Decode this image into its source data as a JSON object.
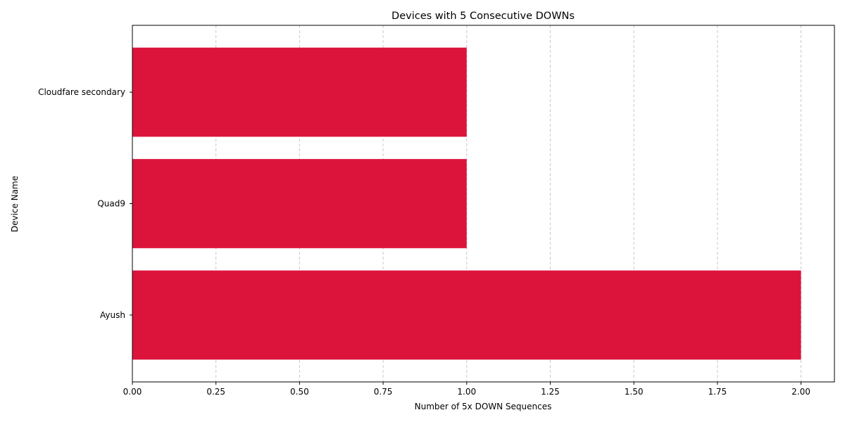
{
  "chart_data": {
    "type": "bar",
    "orientation": "horizontal",
    "title": "Devices with 5 Consecutive DOWNs",
    "xlabel": "Number of 5x DOWN Sequences",
    "ylabel": "Device Name",
    "categories": [
      "Ayush",
      "Quad9",
      "Cloudfare secondary"
    ],
    "values": [
      2,
      1,
      1
    ],
    "xlim": [
      0,
      2.1
    ],
    "x_ticks": [
      0,
      0.25,
      0.5,
      0.75,
      1.0,
      1.25,
      1.5,
      1.75,
      2.0
    ],
    "x_tick_labels": [
      "0.00",
      "0.25",
      "0.50",
      "0.75",
      "1.00",
      "1.25",
      "1.50",
      "1.75",
      "2.00"
    ],
    "grid": "x-axis, dashed",
    "bar_color": "#dc143c",
    "grid_color": "#c8c8c8"
  }
}
